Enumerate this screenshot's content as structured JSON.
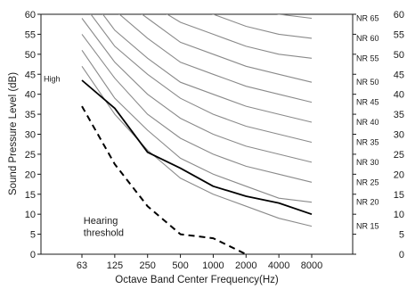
{
  "chart_data": {
    "type": "line",
    "title": "",
    "xlabel": "Octave Band Center Frequency(Hz)",
    "ylabel": "Sound Pressure Level (dB)",
    "x": [
      "63",
      "125",
      "250",
      "500",
      "1000",
      "2000",
      "4000",
      "8000"
    ],
    "ylim": [
      0,
      60
    ],
    "yticks": [
      0,
      5,
      10,
      15,
      20,
      25,
      30,
      35,
      40,
      45,
      50,
      55,
      60
    ],
    "grid": false,
    "colors": {
      "nr_curves": "#8a8a8a",
      "measured": "#000000",
      "threshold": "#000000",
      "axis": "#1a1a1a"
    },
    "nr_curves": [
      {
        "name": "NR 15",
        "values": [
          47,
          35,
          26,
          19,
          15,
          12,
          9,
          7
        ]
      },
      {
        "name": "NR 20",
        "values": [
          51,
          39,
          31,
          24,
          20,
          17,
          14,
          13
        ]
      },
      {
        "name": "NR 25",
        "values": [
          55,
          44,
          35,
          29,
          25,
          22,
          20,
          18
        ]
      },
      {
        "name": "NR 30",
        "values": [
          59,
          48,
          40,
          34,
          30,
          27,
          25,
          23
        ]
      },
      {
        "name": "NR 35",
        "values": [
          63,
          52,
          45,
          39,
          35,
          32,
          30,
          28
        ]
      },
      {
        "name": "NR 40",
        "values": [
          67,
          56,
          49,
          43,
          40,
          37,
          35,
          33
        ]
      },
      {
        "name": "NR 45",
        "values": [
          71,
          61,
          54,
          48,
          45,
          42,
          40,
          38
        ]
      },
      {
        "name": "NR 50",
        "values": [
          75,
          65,
          59,
          53,
          50,
          47,
          45,
          43
        ]
      },
      {
        "name": "NR 55",
        "values": [
          79,
          70,
          63,
          58,
          55,
          52,
          50,
          49
        ]
      },
      {
        "name": "NR 60",
        "values": [
          83,
          74,
          68,
          63,
          60,
          57,
          55,
          54
        ]
      },
      {
        "name": "NR 65",
        "values": [
          87,
          78,
          72,
          68,
          65,
          62,
          60,
          59
        ]
      }
    ],
    "series": [
      {
        "values": [
          43.5,
          36.5,
          25.5,
          21.5,
          17,
          14.5,
          12.8,
          10
        ],
        "style": "solid"
      },
      {
        "values": [
          37,
          22.5,
          12,
          5,
          4,
          0,
          null,
          null
        ],
        "style": "dashed"
      }
    ],
    "annotations": [
      {
        "text": "High",
        "x_index": 0,
        "y": 44
      },
      {
        "text": "Hearing",
        "x_index": 0.7,
        "y": 8.5
      },
      {
        "text": "threshold",
        "x_index": 0.7,
        "y": 5.5
      }
    ]
  }
}
